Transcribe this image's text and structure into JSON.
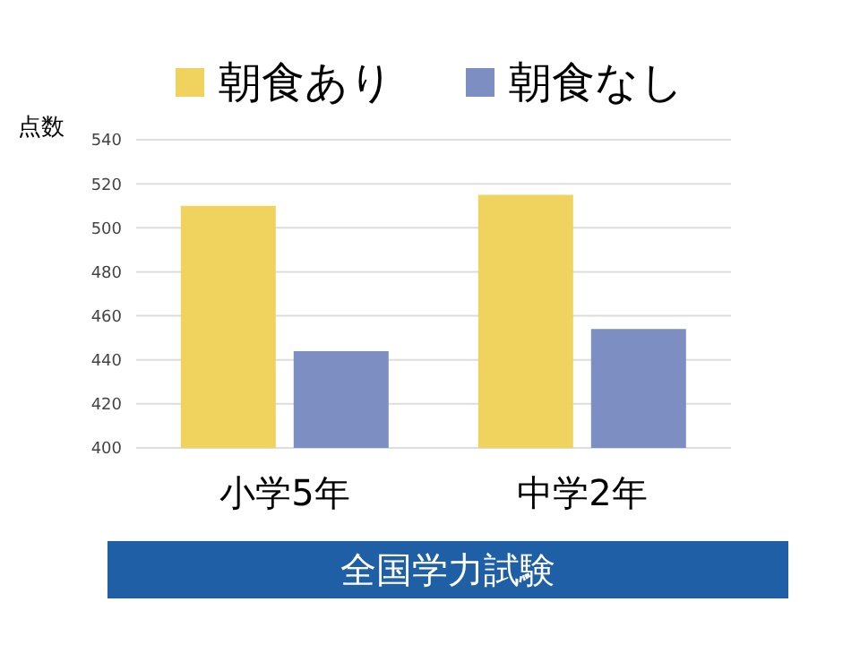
{
  "chart_data": {
    "type": "bar",
    "ylabel": "点数",
    "xlabel": "全国学力試験",
    "categories": [
      "小学5年",
      "中学2年"
    ],
    "series": [
      {
        "name": "朝食あり",
        "color": "#f0d25e",
        "values": [
          510,
          515
        ]
      },
      {
        "name": "朝食なし",
        "color": "#7d8fc2",
        "values": [
          444,
          454
        ]
      }
    ],
    "ylim": [
      400,
      540
    ],
    "yticks": [
      400,
      420,
      440,
      460,
      480,
      500,
      520,
      540
    ],
    "grid": "y",
    "legend": "top"
  }
}
